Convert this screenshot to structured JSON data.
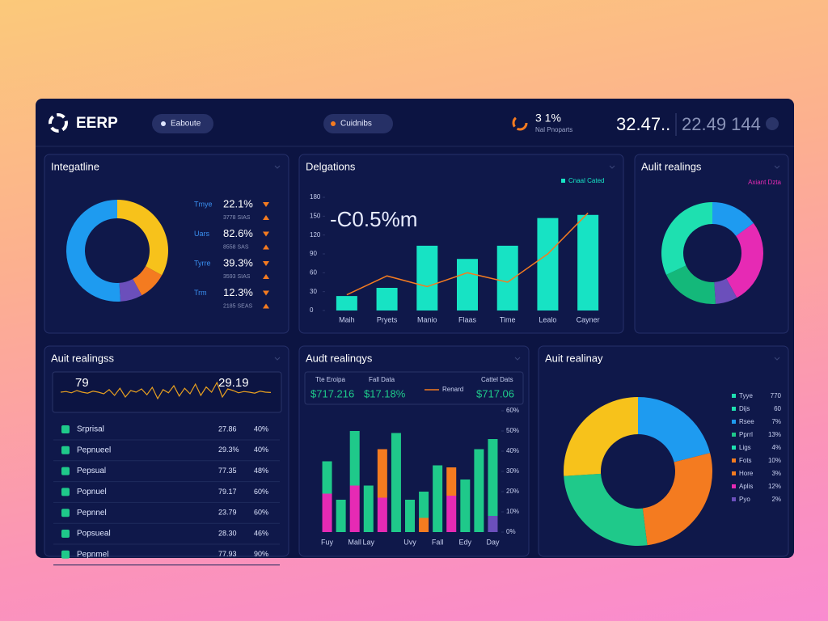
{
  "header": {
    "logo": "EERP",
    "pills": [
      "Eaboute",
      "Cuidnibs"
    ],
    "stat": {
      "value": "3 1%",
      "label": "Nal Pnoparts"
    },
    "numbers": [
      "32.47..",
      "22.49 144"
    ]
  },
  "chart_data": [
    {
      "type": "donut",
      "title": "Integatline",
      "values": [
        33,
        9,
        7,
        51
      ],
      "colors": [
        "#f7c21b",
        "#f47b20",
        "#6b4fbb",
        "#1e9bf0"
      ],
      "rows": [
        {
          "label": "Tmye",
          "value": "22.1%",
          "note": "3778 SIAS"
        },
        {
          "label": "Uars",
          "value": "82.6%",
          "note": "8558 SAS"
        },
        {
          "label": "Tyrre",
          "value": "39.3%",
          "note": "3593 SIAS"
        },
        {
          "label": "Trm",
          "value": "12.3%",
          "note": "2185 SEAS"
        }
      ]
    },
    {
      "type": "bar",
      "title": "Delgations",
      "annotation": "-C0.5%m",
      "legend": "Cnaal Cated",
      "categories": [
        "Maih",
        "Pryets",
        "Manio",
        "Flaas",
        "Time",
        "Lealo",
        "Cayner"
      ],
      "values": [
        23,
        36,
        103,
        82,
        103,
        147,
        152
      ],
      "color": "#17e3c4",
      "line_values": [
        25,
        55,
        38,
        60,
        45,
        90,
        155
      ],
      "line_color": "#f47b20",
      "ylim": [
        0,
        180
      ],
      "yticks": [
        0,
        30,
        60,
        90,
        120,
        150,
        180
      ]
    },
    {
      "type": "donut",
      "title": "Aulit realings",
      "legend": "Axiant Dzta",
      "values": [
        15,
        27,
        7,
        19,
        32
      ],
      "colors": [
        "#1e9bf0",
        "#e62ab4",
        "#6b4fbb",
        "#14b87a",
        "#1ee0b0"
      ]
    },
    {
      "type": "line",
      "title": "Auit realingss",
      "start_label": "79",
      "end_label": "29.19",
      "color": "#e8a020",
      "ylim": [
        0,
        100
      ],
      "values": [
        50,
        52,
        48,
        55,
        50,
        47,
        53,
        50,
        45,
        58,
        40,
        62,
        35,
        55,
        50,
        60,
        42,
        65,
        30,
        58,
        48,
        70,
        38,
        62,
        45,
        75,
        40,
        66,
        50,
        80,
        35,
        60,
        55,
        48,
        52,
        50,
        47,
        53,
        50,
        49
      ],
      "rows": [
        {
          "name": "Srprisal",
          "value": "27.86",
          "share": "40%"
        },
        {
          "name": "Pepnueel",
          "value": "29.3%",
          "share": "40%"
        },
        {
          "name": "Pepsual",
          "value": "77.35",
          "share": "48%"
        },
        {
          "name": "Popnuel",
          "value": "79.17",
          "share": "60%"
        },
        {
          "name": "Pepnnel",
          "value": "23.79",
          "share": "60%"
        },
        {
          "name": "Popsueal",
          "value": "28.30",
          "share": "46%"
        },
        {
          "name": "Pepnmel",
          "value": "77.93",
          "share": "90%"
        }
      ]
    },
    {
      "type": "stacked_bar",
      "title": "Audt realinqys",
      "legend": "Renard",
      "stats": [
        {
          "label": "Tte Eroipa",
          "value": "$717.216"
        },
        {
          "label": "Fall Data",
          "value": "$17.18%"
        },
        {
          "label": "Cattel Dats",
          "value": "$717.06"
        }
      ],
      "categories": [
        "Fuy",
        null,
        "Mall",
        "Lay",
        null,
        null,
        "Uvy",
        null,
        "Fall",
        null,
        "Edy",
        null,
        "Day"
      ],
      "series": [
        {
          "color": "#6b4fbb",
          "values": [
            0,
            0,
            0,
            0,
            0,
            0,
            0,
            0,
            0,
            0,
            0,
            0,
            8
          ]
        },
        {
          "color": "#e62ab4",
          "values": [
            19,
            0,
            23,
            0,
            17,
            0,
            0,
            0,
            0,
            18,
            0,
            0,
            0
          ]
        },
        {
          "color": "#f47b20",
          "values": [
            0,
            0,
            0,
            0,
            24,
            0,
            0,
            7,
            0,
            14,
            0,
            0,
            0
          ]
        },
        {
          "color": "#1fc98a",
          "values": [
            16,
            16,
            27,
            23,
            0,
            49,
            16,
            13,
            33,
            0,
            26,
            41,
            38
          ]
        }
      ],
      "ylim": [
        0,
        60
      ],
      "yticks": [
        {
          "value": 0,
          "label": "0%"
        },
        {
          "value": 10,
          "label": "10%"
        },
        {
          "value": 20,
          "label": "20%"
        },
        {
          "value": 30,
          "label": "30%"
        },
        {
          "value": 40,
          "label": "40%"
        },
        {
          "value": 50,
          "label": "50%"
        },
        {
          "value": 60,
          "label": "60%"
        }
      ]
    },
    {
      "type": "donut",
      "title": "Auit realinay",
      "values": [
        21,
        27,
        26,
        26
      ],
      "colors": [
        "#1e9bf0",
        "#f47b20",
        "#1fc98a",
        "#f7c21b"
      ],
      "rows": [
        {
          "name": "Tyye",
          "value": "770",
          "color": "#1ee0b0"
        },
        {
          "name": "Dijs",
          "value": "60",
          "color": "#1ee0b0"
        },
        {
          "name": "Rsee",
          "value": "7%",
          "color": "#1e9bf0"
        },
        {
          "name": "Pprrl",
          "value": "13%",
          "color": "#1fc98a"
        },
        {
          "name": "Ligs",
          "value": "4%",
          "color": "#1ee0b0"
        },
        {
          "name": "Fots",
          "value": "10%",
          "color": "#f47b20"
        },
        {
          "name": "Hore",
          "value": "3%",
          "color": "#f47b20"
        },
        {
          "name": "Aplis",
          "value": "12%",
          "color": "#e62ab4"
        },
        {
          "name": "Pyo",
          "value": "2%",
          "color": "#6b4fbb"
        }
      ]
    }
  ]
}
